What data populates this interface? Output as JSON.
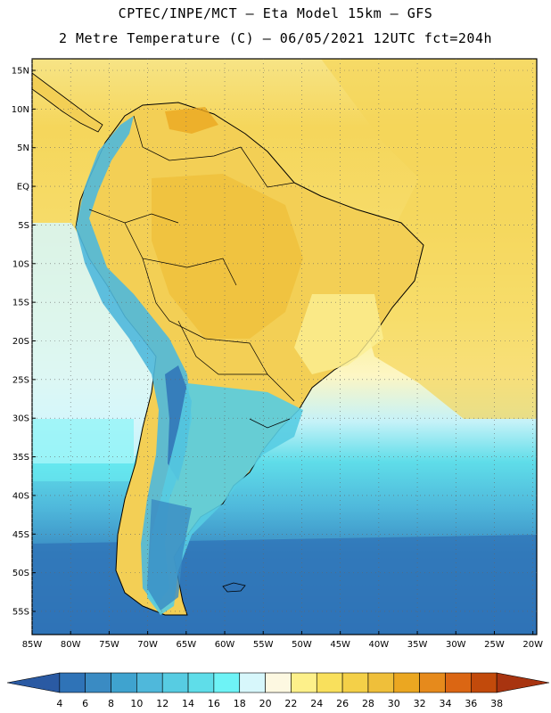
{
  "header": {
    "line1": "CPTEC/INPE/MCT –  Eta Model 15km – GFS",
    "line2": "2 Metre Temperature (C) – 06/05/2021 12UTC fct=204h"
  },
  "map": {
    "lat_labels": [
      "15N",
      "10N",
      "5N",
      "EQ",
      "5S",
      "10S",
      "15S",
      "20S",
      "25S",
      "30S",
      "35S",
      "40S",
      "45S",
      "50S",
      "55S"
    ],
    "lon_labels": [
      "85W",
      "80W",
      "75W",
      "70W",
      "65W",
      "60W",
      "55W",
      "50W",
      "45W",
      "40W",
      "35W",
      "30W",
      "25W",
      "20W"
    ],
    "lat_values": [
      15,
      10,
      5,
      0,
      -5,
      -10,
      -15,
      -20,
      -25,
      -30,
      -35,
      -40,
      -45,
      -50,
      -55
    ],
    "lon_values": [
      -85,
      -80,
      -75,
      -70,
      -65,
      -60,
      -55,
      -50,
      -45,
      -40,
      -35,
      -30,
      -25,
      -20
    ],
    "extent": {
      "lon_min": -85,
      "lon_max": -19.5,
      "lat_min": -58,
      "lat_max": 16.5
    }
  },
  "colorbar": {
    "unit": "C",
    "labels": [
      "4",
      "6",
      "8",
      "10",
      "12",
      "14",
      "16",
      "18",
      "20",
      "22",
      "24",
      "26",
      "28",
      "30",
      "32",
      "34",
      "36",
      "38"
    ],
    "colors": [
      "#2a5aa3",
      "#2f73b7",
      "#3a8bc3",
      "#3fa3cf",
      "#4fb8db",
      "#57cce2",
      "#5fdde9",
      "#6ef3f6",
      "#d7f7fb",
      "#fdf8e1",
      "#fdf08a",
      "#f9e05c",
      "#f4d048",
      "#efbf3a",
      "#eba721",
      "#e68a1c",
      "#db6613",
      "#c24a0b",
      "#a83410"
    ]
  }
}
